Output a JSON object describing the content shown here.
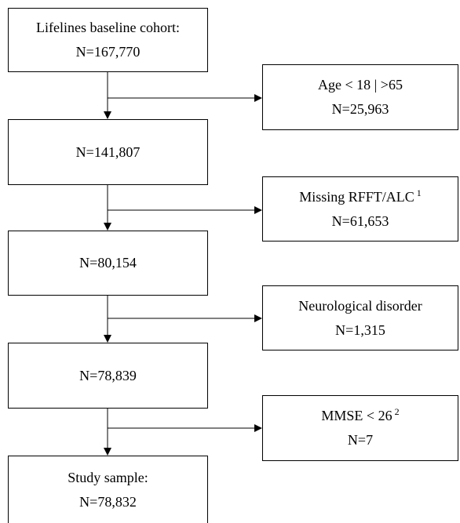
{
  "main_boxes": [
    {
      "line1": "Lifelines  baseline cohort:",
      "line2": "N=167,770"
    },
    {
      "line1": "N=141,807"
    },
    {
      "line1": "N=80,154"
    },
    {
      "line1": "N=78,839"
    },
    {
      "line1": "Study sample:",
      "line2": "N=78,832"
    }
  ],
  "exclusion_boxes": [
    {
      "line1": "Age < 18 | >65",
      "line2": "N=25,963",
      "note": ""
    },
    {
      "line1": "Missing RFFT/ALC",
      "note": "1",
      "line2": "N=61,653"
    },
    {
      "line1": "Neurological disorder",
      "line2": "N=1,315",
      "note": ""
    },
    {
      "line1": "MMSE < 26",
      "note": "2",
      "line2": "N=7"
    }
  ]
}
